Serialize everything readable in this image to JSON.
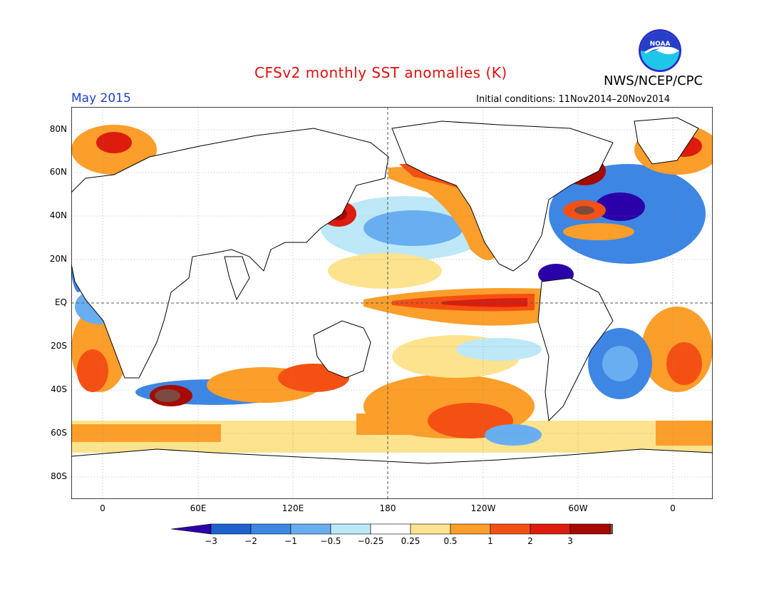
{
  "header": {
    "title": "CFSv2 monthly SST anomalies (K)",
    "agency": "NWS/NCEP/CPC",
    "valid_month": "May 2015",
    "initial_conditions": "Initial conditions: 11Nov2014–20Nov2014",
    "logo_text": "NOAA"
  },
  "axes": {
    "lat_labels": [
      "80N",
      "60N",
      "40N",
      "20N",
      "EQ",
      "20S",
      "40S",
      "60S",
      "80S"
    ],
    "lon_labels": [
      "0",
      "60E",
      "120E",
      "180",
      "120W",
      "60W",
      "0"
    ]
  },
  "colorbar": {
    "labels": [
      "−3",
      "−2",
      "−1",
      "−0.5",
      "−0.25",
      "0.25",
      "0.5",
      "1",
      "2",
      "3"
    ],
    "colors": [
      "#2a00a8",
      "#1f62cf",
      "#3d86e4",
      "#69aef0",
      "#bde8f8",
      "#ffffff",
      "#fde38e",
      "#fc9e2a",
      "#f55013",
      "#dd1c0e",
      "#a50a00",
      "#7a4b3e"
    ]
  },
  "colors": {
    "title": "#e0100f",
    "valid_month": "#1a3fd0"
  }
}
